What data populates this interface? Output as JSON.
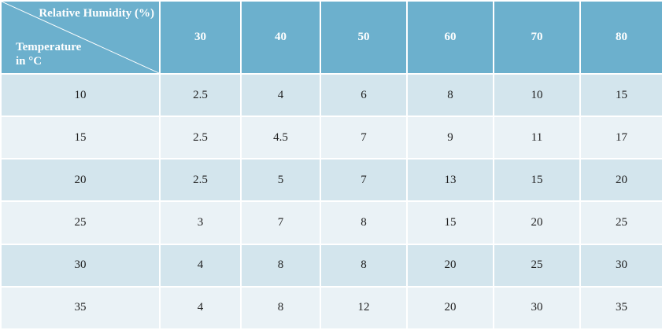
{
  "chart_data": {
    "type": "table",
    "header": {
      "column_title": "Relative Humidity (%)",
      "row_title_line1": "Temperature",
      "row_title_line2": "in °C"
    },
    "columns": [
      "30",
      "40",
      "50",
      "60",
      "70",
      "80"
    ],
    "rows": [
      {
        "label": "10",
        "values": [
          "2.5",
          "4",
          "6",
          "8",
          "10",
          "15"
        ]
      },
      {
        "label": "15",
        "values": [
          "2.5",
          "4.5",
          "7",
          "9",
          "11",
          "17"
        ]
      },
      {
        "label": "20",
        "values": [
          "2.5",
          "5",
          "7",
          "13",
          "15",
          "20"
        ]
      },
      {
        "label": "25",
        "values": [
          "3",
          "7",
          "8",
          "15",
          "20",
          "25"
        ]
      },
      {
        "label": "30",
        "values": [
          "4",
          "8",
          "8",
          "20",
          "25",
          "30"
        ]
      },
      {
        "label": "35",
        "values": [
          "4",
          "8",
          "12",
          "20",
          "30",
          "35"
        ]
      }
    ],
    "colors": {
      "header": "#6cb0cd",
      "row_odd": "#d3e5ed",
      "row_even": "#eaf2f6"
    }
  }
}
